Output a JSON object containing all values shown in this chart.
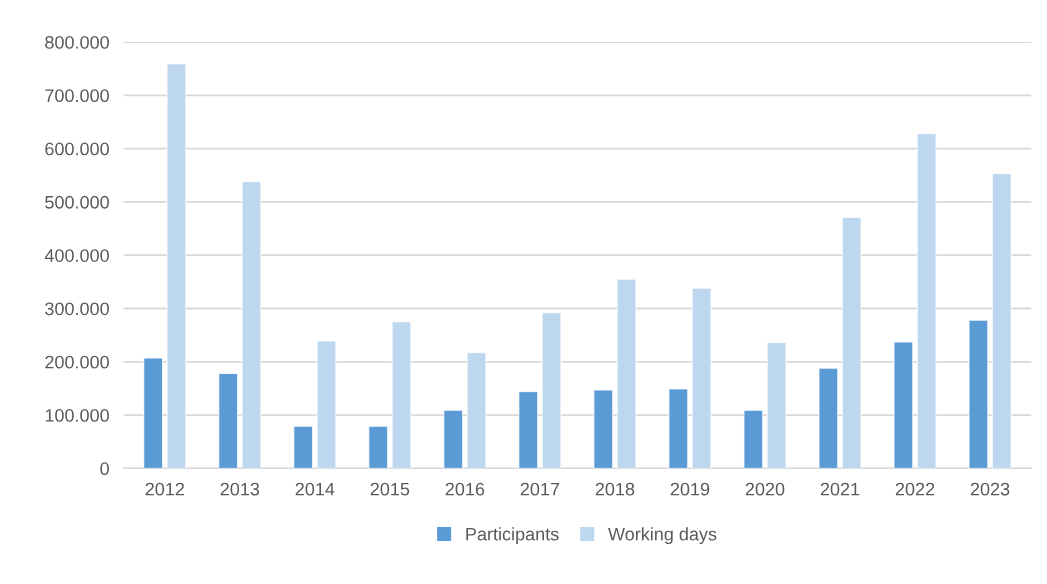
{
  "chart_data": {
    "type": "bar",
    "categories": [
      "2012",
      "2013",
      "2014",
      "2015",
      "2016",
      "2017",
      "2018",
      "2019",
      "2020",
      "2021",
      "2022",
      "2023"
    ],
    "series": [
      {
        "name": "Participants",
        "color": "#5b9bd5",
        "values": [
          207000,
          178000,
          79000,
          79000,
          109000,
          144000,
          147000,
          149000,
          109000,
          188000,
          237000,
          278000
        ]
      },
      {
        "name": "Working days",
        "color": "#bdd7ee",
        "values": [
          759000,
          538000,
          239000,
          275000,
          217000,
          292000,
          355000,
          338000,
          236000,
          471000,
          628000,
          553000
        ]
      }
    ],
    "ylim": [
      0,
      800000
    ],
    "yticks": [
      0,
      {
        "value": 100000,
        "label": "100.000"
      },
      {
        "value": 200000,
        "label": "200.000"
      },
      {
        "value": 300000,
        "label": "300.000"
      },
      {
        "value": 400000,
        "label": "400.000"
      },
      {
        "value": 500000,
        "label": "500.000"
      },
      {
        "value": 600000,
        "label": "600.000"
      },
      {
        "value": 700000,
        "label": "700.000"
      },
      {
        "value": 800000,
        "label": "800.000"
      }
    ],
    "grid": "y",
    "legend": "bottom"
  }
}
